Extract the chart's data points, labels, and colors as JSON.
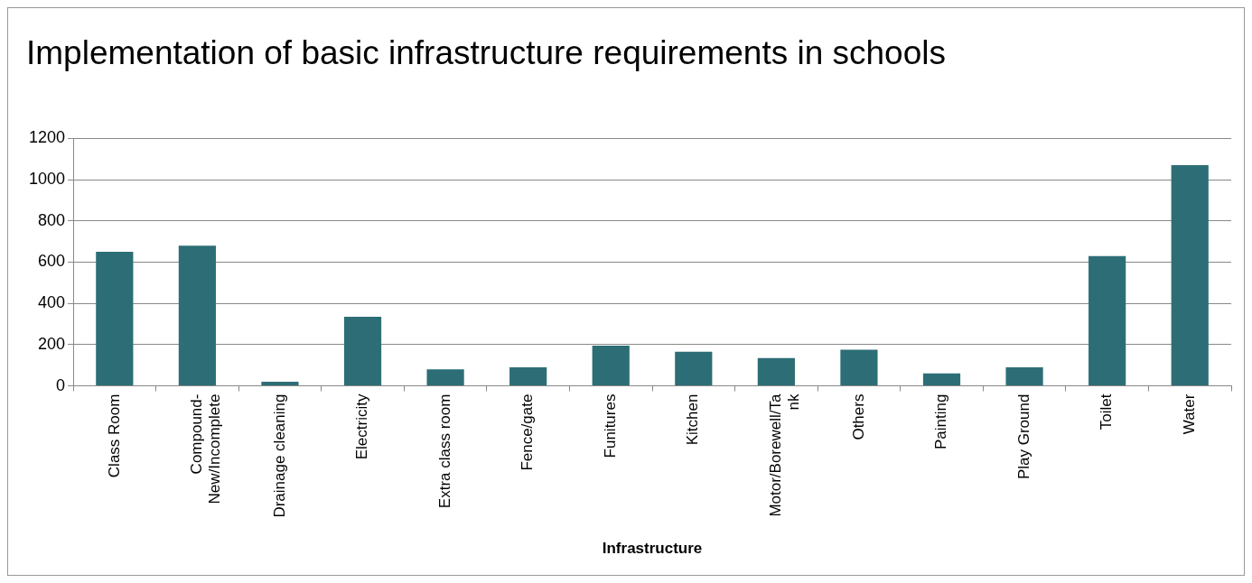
{
  "chart_data": {
    "type": "bar",
    "title": "Implementation of basic infrastructure requirements in schools",
    "xlabel": "Infrastructure",
    "categories": [
      "Class Room",
      "Compound-New/Incomplete",
      "Drainage cleaning",
      "Electricity",
      "Extra class room",
      "Fence/gate",
      "Funitures",
      "Kitchen",
      "Motor/Borewell/Tank",
      "Others",
      "Painting",
      "Play Ground",
      "Toilet",
      "Water"
    ],
    "values": [
      650,
      680,
      20,
      335,
      80,
      90,
      195,
      165,
      135,
      175,
      60,
      90,
      630,
      1070
    ],
    "color": "#2d6e76",
    "ylim": [
      0,
      1200
    ],
    "yticks": [
      0,
      200,
      400,
      600,
      800,
      1000,
      1200
    ],
    "grid": "y",
    "legend": false
  }
}
